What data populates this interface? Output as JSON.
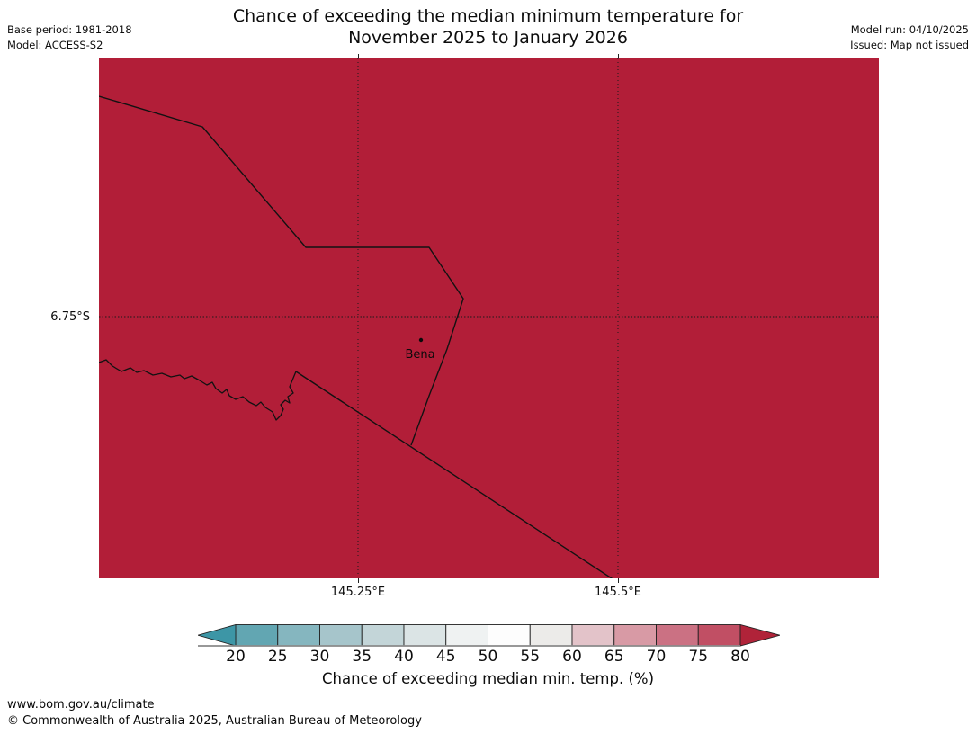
{
  "header": {
    "title_line1": "Chance of exceeding the median minimum temperature for",
    "title_line2": "November 2025 to January 2026",
    "base_period": "Base period: 1981-2018",
    "model": "Model: ACCESS-S2",
    "model_run": "Model run: 04/10/2025",
    "issued": "Issued: Map not issued"
  },
  "map": {
    "fill_color": "#B21E38",
    "town_label": "Bena",
    "y_tick_label": "6.75°S",
    "x_tick_labels": [
      "145.25°E",
      "145.5°E"
    ]
  },
  "colorbar": {
    "label": "Chance of exceeding median min. temp. (%)",
    "ticks": [
      "20",
      "25",
      "30",
      "35",
      "40",
      "45",
      "50",
      "55",
      "60",
      "65",
      "70",
      "75",
      "80"
    ],
    "segment_colors": [
      "#62A6B2",
      "#85B6BF",
      "#A6C5CB",
      "#C3D5D8",
      "#DBE4E5",
      "#EFF2F2",
      "#FDFDFD",
      "#ECEBE9",
      "#E3C3C9",
      "#D89AA5",
      "#CB7183",
      "#C14F64"
    ],
    "left_arrow_color": "#3D96A6",
    "right_arrow_color": "#B02339"
  },
  "footer": {
    "url": "www.bom.gov.au/climate",
    "copyright": "© Commonwealth of Australia 2025, Australian Bureau of Meteorology"
  },
  "chart_data": {
    "type": "heatmap",
    "title": "Chance of exceeding the median minimum temperature for November 2025 to January 2026",
    "colorbar_label": "Chance of exceeding median min. temp. (%)",
    "colorbar_ticks": [
      20,
      25,
      30,
      35,
      40,
      45,
      50,
      55,
      60,
      65,
      70,
      75,
      80
    ],
    "x_axis_ticks": [
      "145.25°E",
      "145.5°E"
    ],
    "y_axis_ticks": [
      "6.75°S"
    ],
    "towns": [
      "Bena"
    ],
    "region_shading": "uniform dark red across entire mapped area, corresponding to the >80% end of the colorbar"
  }
}
